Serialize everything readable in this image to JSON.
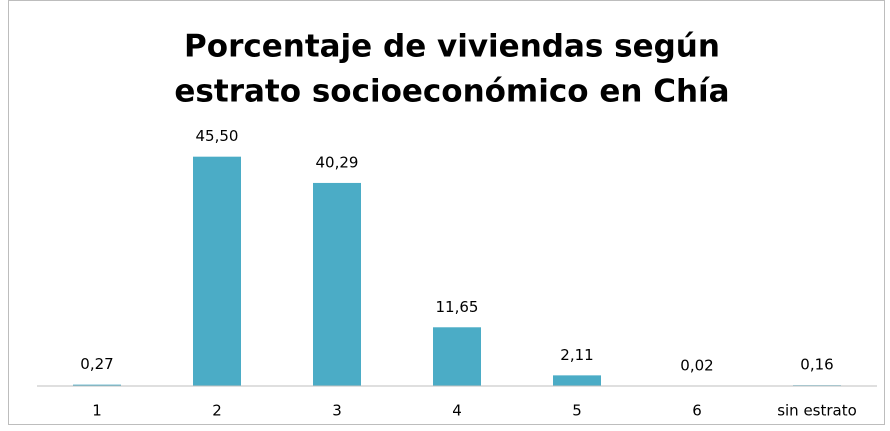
{
  "chart_data": {
    "type": "bar",
    "title": [
      "Porcentaje de viviendas según",
      "estrato socioeconómico en Chía"
    ],
    "categories": [
      "1",
      "2",
      "3",
      "4",
      "5",
      "6",
      "sin estrato"
    ],
    "values": [
      0.27,
      45.5,
      40.29,
      11.65,
      2.11,
      0.02,
      0.16
    ],
    "value_labels": [
      "0,27",
      "45,50",
      "40,29",
      "11,65",
      "2,11",
      "0,02",
      "0,16"
    ],
    "color": "#4bacc6",
    "ylim": [
      0,
      50
    ]
  }
}
